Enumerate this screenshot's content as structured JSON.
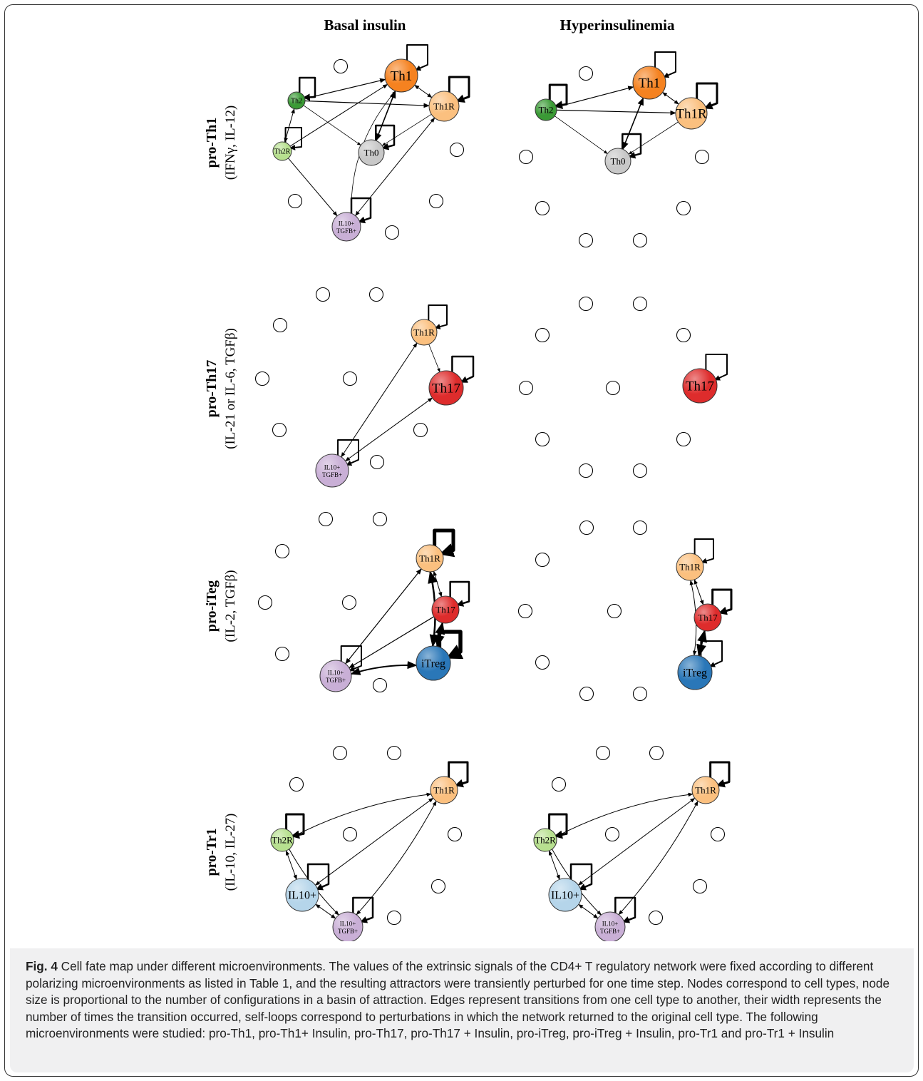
{
  "columns": [
    "Basal insulin",
    "Hyperinsulinemia"
  ],
  "rows": [
    {
      "name": "pro-Th1",
      "signals": "(IFNγ, IL-12)"
    },
    {
      "name": "pro-Th17",
      "signals": "(IL-21 or IL-6, TGFβ)"
    },
    {
      "name": "pro-iTeg",
      "signals": "(IL-2, TGFβ)"
    },
    {
      "name": "pro-Tr1",
      "signals": "(IL-10, IL-27)"
    }
  ],
  "caption": {
    "label": "Fig. 4",
    "text": "Cell fate map under different microenvironments. The values of the extrinsic signals of the CD4+ T regulatory network were fixed according to different polarizing microenvironments as listed in Table 1, and the resulting attractors were transiently perturbed for one time step. Nodes correspond to cell types, node size is proportional to the number of configurations in a basin of attraction. Edges represent transitions from one cell type to another, their width represents the number of times the transition occurred, self-loops correspond to perturbations in which the network returned to the original cell type. The following microenvironments were studied: pro-Th1, pro-Th1+ Insulin, pro-Th17, pro-Th17 + Insulin, pro-iTreg, pro-iTreg + Insulin, pro-Tr1 and pro-Tr1 + Insulin"
  },
  "node_colors": {
    "Th1": "#f58220",
    "Th1R": "#fbc07f",
    "Th2": "#3a9a35",
    "Th2R": "#b7e08f",
    "Th0": "#c8c8c8",
    "IL10+TGFB+": "#c9afd6",
    "Th17": "#de2c2c",
    "iTreg": "#2a77b8",
    "IL10+": "#b5d5ea",
    "empty": "#ffffff"
  },
  "panels": [
    {
      "id": "th1-basal",
      "nodes": [
        {
          "id": "Th1",
          "label": "Th1",
          "color": "Th1",
          "r": 23
        },
        {
          "id": "Th1R",
          "label": "Th1R",
          "color": "Th1R",
          "r": 21
        },
        {
          "id": "Th2",
          "label": "Th2",
          "color": "Th2",
          "r": 12
        },
        {
          "id": "Th2R",
          "label": "Th2R",
          "color": "Th2R",
          "r": 13
        },
        {
          "id": "Th0",
          "label": "Th0",
          "color": "Th0",
          "r": 18
        },
        {
          "id": "IL",
          "label": "IL10+|TGFB+",
          "color": "IL10+TGFB+",
          "r": 20
        }
      ]
    },
    {
      "id": "th1-hyper",
      "nodes": [
        {
          "id": "Th1",
          "label": "Th1",
          "color": "Th1",
          "r": 23
        },
        {
          "id": "Th1R",
          "label": "Th1R",
          "color": "Th1R",
          "r": 22
        },
        {
          "id": "Th2",
          "label": "Th2",
          "color": "Th2",
          "r": 15
        },
        {
          "id": "Th0",
          "label": "Th0",
          "color": "Th0",
          "r": 18
        }
      ]
    },
    {
      "id": "th17-basal",
      "nodes": [
        {
          "id": "Th1R",
          "label": "Th1R",
          "color": "Th1R",
          "r": 18
        },
        {
          "id": "Th17",
          "label": "Th17",
          "color": "Th17",
          "r": 24
        },
        {
          "id": "IL",
          "label": "IL10+|TGFB+",
          "color": "IL10+TGFB+",
          "r": 23
        }
      ]
    },
    {
      "id": "th17-hyper",
      "nodes": [
        {
          "id": "Th17",
          "label": "Th17",
          "color": "Th17",
          "r": 24
        }
      ]
    },
    {
      "id": "itreg-basal",
      "nodes": [
        {
          "id": "Th1R",
          "label": "Th1R",
          "color": "Th1R",
          "r": 19
        },
        {
          "id": "Th17",
          "label": "Th17",
          "color": "Th17",
          "r": 19
        },
        {
          "id": "iTreg",
          "label": "iTreg",
          "color": "iTreg",
          "r": 24
        },
        {
          "id": "IL",
          "label": "IL10+|TGFB+",
          "color": "IL10+TGFB+",
          "r": 22
        }
      ]
    },
    {
      "id": "itreg-hyper",
      "nodes": [
        {
          "id": "Th1R",
          "label": "Th1R",
          "color": "Th1R",
          "r": 19
        },
        {
          "id": "Th17",
          "label": "Th17",
          "color": "Th17",
          "r": 19
        },
        {
          "id": "iTreg",
          "label": "iTreg",
          "color": "iTreg",
          "r": 24
        }
      ]
    },
    {
      "id": "tr1-basal",
      "nodes": [
        {
          "id": "Th1R",
          "label": "Th1R",
          "color": "Th1R",
          "r": 19
        },
        {
          "id": "Th2R",
          "label": "Th2R",
          "color": "Th2R",
          "r": 16
        },
        {
          "id": "IL10",
          "label": "IL10+",
          "color": "IL10+",
          "r": 23
        },
        {
          "id": "IL",
          "label": "IL10+|TGFB+",
          "color": "IL10+TGFB+",
          "r": 21
        }
      ]
    },
    {
      "id": "tr1-hyper",
      "nodes": [
        {
          "id": "Th1R",
          "label": "Th1R",
          "color": "Th1R",
          "r": 19
        },
        {
          "id": "Th2R",
          "label": "Th2R",
          "color": "Th2R",
          "r": 16
        },
        {
          "id": "IL10",
          "label": "IL10+",
          "color": "IL10+",
          "r": 23
        },
        {
          "id": "IL",
          "label": "IL10+|TGFB+",
          "color": "IL10+TGFB+",
          "r": 21
        }
      ]
    }
  ]
}
